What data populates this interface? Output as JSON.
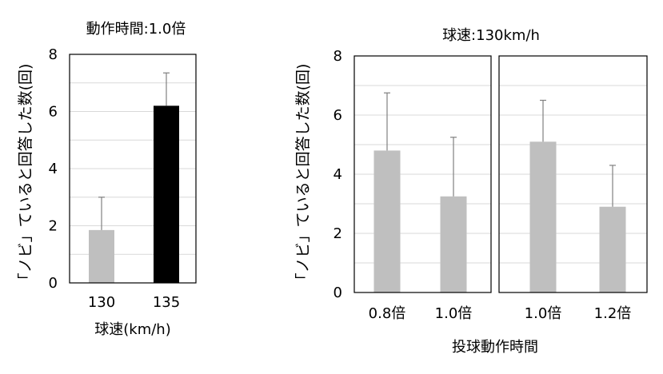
{
  "chart_data": [
    {
      "type": "bar",
      "title": "動作時間:1.0倍",
      "ylabel": "「ノビ」ていると回答した数(回)",
      "xlabel": "球速(km/h)",
      "ylim": [
        0,
        8
      ],
      "yticks": [
        "0",
        "2",
        "4",
        "6",
        "8"
      ],
      "categories": [
        "130",
        "135"
      ],
      "values": [
        1.85,
        6.2
      ],
      "error_upper": [
        3.0,
        7.35
      ],
      "colors": [
        "#bfbfbf",
        "#000000"
      ]
    },
    {
      "type": "bar",
      "title": "球速:130km/h",
      "ylabel": "「ノビ」ていると回答した数(回)",
      "xlabel": "投球動作時間",
      "ylim": [
        0,
        8
      ],
      "yticks": [
        "0",
        "2",
        "4",
        "6",
        "8"
      ],
      "panels": [
        {
          "categories": [
            "0.8倍",
            "1.0倍"
          ],
          "values": [
            4.8,
            3.25
          ],
          "error_upper": [
            6.75,
            5.25
          ],
          "colors": [
            "#bfbfbf",
            "#bfbfbf"
          ]
        },
        {
          "categories": [
            "1.0倍",
            "1.2倍"
          ],
          "values": [
            5.1,
            2.9
          ],
          "error_upper": [
            6.5,
            4.3
          ],
          "colors": [
            "#bfbfbf",
            "#bfbfbf"
          ]
        }
      ]
    }
  ]
}
